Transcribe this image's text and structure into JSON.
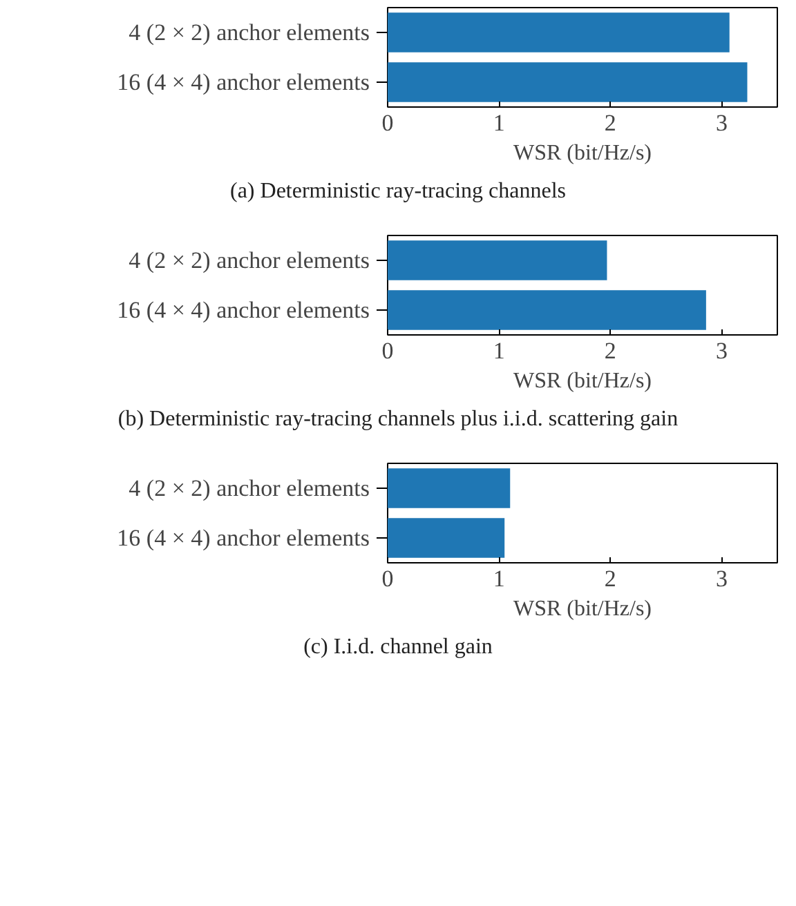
{
  "chart_data": [
    {
      "type": "bar",
      "orientation": "horizontal",
      "title": "(a) Deterministic ray-tracing channels",
      "xlabel": "WSR (bit/Hz/s)",
      "categories": [
        "4 (2 × 2) anchor elements",
        "16 (4 × 4) anchor elements"
      ],
      "values": [
        3.07,
        3.23
      ],
      "color": "#1f77b4",
      "xlim": [
        0,
        3.5
      ],
      "xticks": [
        0,
        1,
        2,
        3
      ],
      "grid": false
    },
    {
      "type": "bar",
      "orientation": "horizontal",
      "title": "(b) Deterministic ray-tracing channels plus i.i.d. scattering gain",
      "xlabel": "WSR (bit/Hz/s)",
      "categories": [
        "4 (2 × 2) anchor elements",
        "16 (4 × 4) anchor elements"
      ],
      "values": [
        1.97,
        2.86
      ],
      "color": "#1f77b4",
      "xlim": [
        0,
        3.5
      ],
      "xticks": [
        0,
        1,
        2,
        3
      ],
      "grid": false
    },
    {
      "type": "bar",
      "orientation": "horizontal",
      "title": "(c) I.i.d. channel gain",
      "xlabel": "WSR (bit/Hz/s)",
      "categories": [
        "4 (2 × 2) anchor elements",
        "16 (4 × 4) anchor elements"
      ],
      "values": [
        1.1,
        1.05
      ],
      "color": "#1f77b4",
      "xlim": [
        0,
        3.5
      ],
      "xticks": [
        0,
        1,
        2,
        3
      ],
      "grid": false
    }
  ]
}
